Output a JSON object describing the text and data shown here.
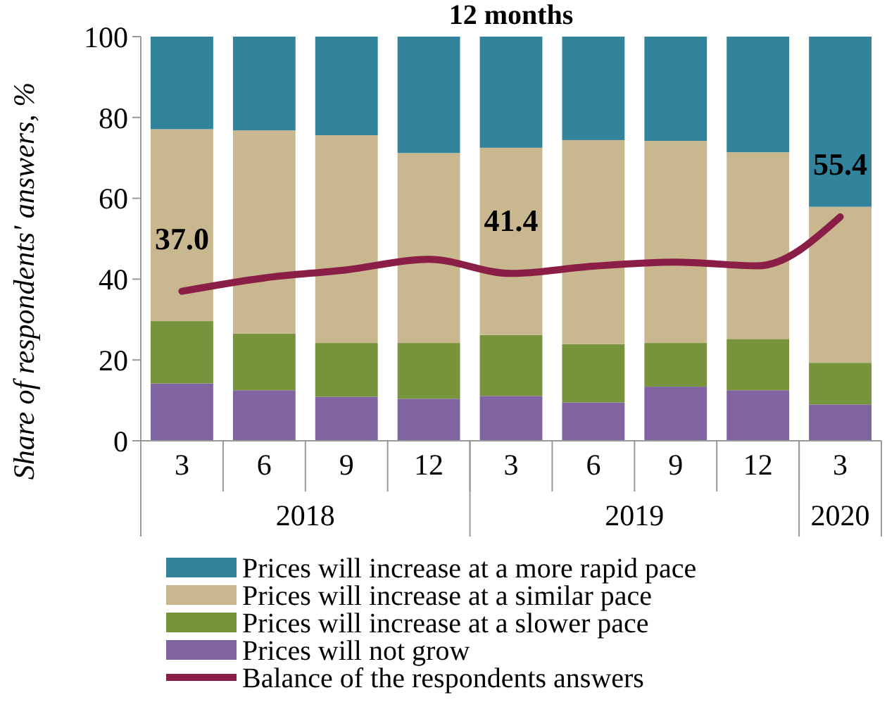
{
  "chart_data": {
    "type": "bar",
    "stacked": true,
    "title": "12 months",
    "ylabel": "Share of respondents' answers, %",
    "categories": [
      "3",
      "6",
      "9",
      "12",
      "3",
      "6",
      "9",
      "12",
      "3"
    ],
    "annotations": [
      "2018",
      "2019",
      "2020"
    ],
    "ylim": [
      0,
      100
    ],
    "yticks": [
      0,
      20,
      40,
      60,
      80,
      100
    ],
    "legend": "bottom",
    "grid": false,
    "series": [
      {
        "name": "Prices will not grow",
        "color": "#8064a2",
        "values": [
          14.2,
          12.5,
          10.9,
          10.4,
          11.1,
          9.5,
          13.4,
          12.5,
          9.0
        ]
      },
      {
        "name": "Prices will increase at a slower pace",
        "color": "#77933c",
        "values": [
          15.4,
          14.0,
          13.3,
          13.8,
          15.1,
          14.4,
          10.8,
          12.7,
          10.3
        ]
      },
      {
        "name": "Prices will increase at a similar pace",
        "color": "#c9b88f",
        "values": [
          47.5,
          50.3,
          51.4,
          47.0,
          46.3,
          50.5,
          50.0,
          46.2,
          38.6
        ]
      },
      {
        "name": "Prices will increase at a more rapid pace",
        "color": "#31849b",
        "values": [
          22.9,
          23.2,
          24.4,
          28.8,
          27.5,
          25.6,
          25.8,
          28.6,
          42.1
        ]
      },
      {
        "name": "Balance of the respondents answers",
        "type": "line",
        "color": "#8b1e47",
        "values": [
          37.0,
          40.3,
          42.3,
          44.9,
          41.4,
          43.2,
          44.2,
          43.3,
          55.4
        ],
        "value_labels": [
          "37.0",
          null,
          null,
          null,
          "41.4",
          null,
          null,
          null,
          "55.4"
        ]
      }
    ]
  }
}
